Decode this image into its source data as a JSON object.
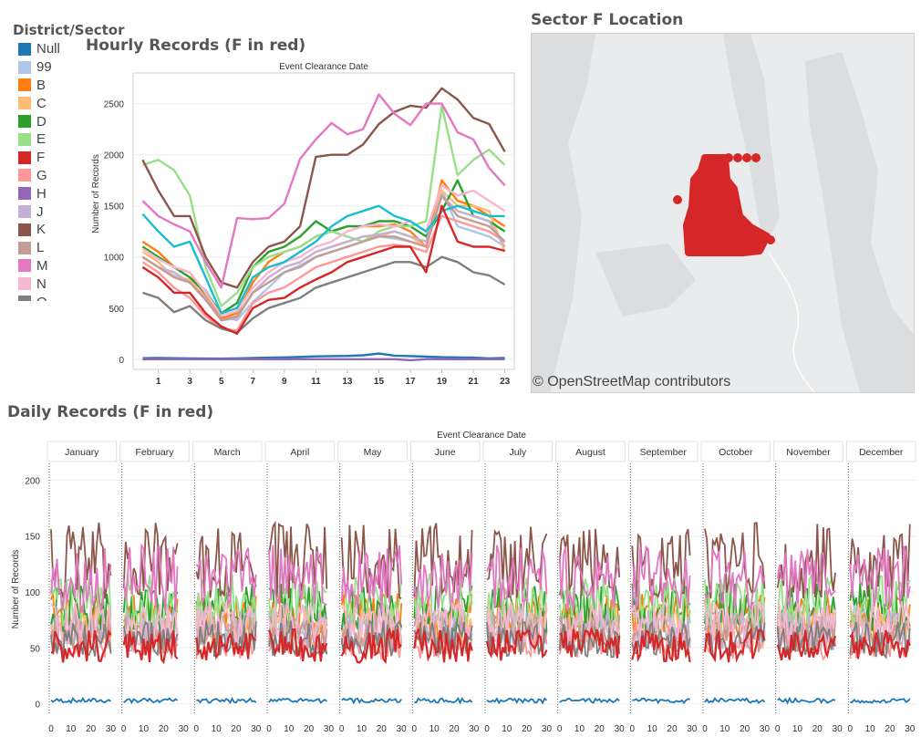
{
  "legend": {
    "title": "District/Sector",
    "items": [
      {
        "label": "Null",
        "color": "#1f77b4"
      },
      {
        "label": "99",
        "color": "#aec7e8"
      },
      {
        "label": "B",
        "color": "#ff7f0e"
      },
      {
        "label": "C",
        "color": "#ffbb78"
      },
      {
        "label": "D",
        "color": "#2ca02c"
      },
      {
        "label": "E",
        "color": "#98df8a"
      },
      {
        "label": "F",
        "color": "#d62728"
      },
      {
        "label": "G",
        "color": "#ff9896"
      },
      {
        "label": "H",
        "color": "#9467bd"
      },
      {
        "label": "J",
        "color": "#c5b0d5"
      },
      {
        "label": "K",
        "color": "#8c564b"
      },
      {
        "label": "L",
        "color": "#c49c94"
      },
      {
        "label": "M",
        "color": "#e377c2"
      },
      {
        "label": "N",
        "color": "#f7b6d2"
      },
      {
        "label": "O",
        "color": "#7f7f7f"
      }
    ]
  },
  "map": {
    "title": "Sector F Location",
    "credit": "© OpenStreetMap contributors",
    "highlight_color": "#d62728"
  },
  "chart_data": [
    {
      "type": "line",
      "title": "Hourly Records (F in red)",
      "top_label": "Event Clearance Date",
      "ylabel": "Number of Records",
      "ylim": [
        -100,
        2800
      ],
      "yticks": [
        0,
        500,
        1000,
        1500,
        2000,
        2500
      ],
      "xticks": [
        1,
        3,
        5,
        7,
        9,
        11,
        13,
        15,
        17,
        19,
        21,
        23
      ],
      "x": [
        0,
        1,
        2,
        3,
        4,
        5,
        6,
        7,
        8,
        9,
        10,
        11,
        12,
        13,
        14,
        15,
        16,
        17,
        18,
        19,
        20,
        21,
        22,
        23
      ],
      "series": [
        {
          "name": "Null",
          "color": "#1f77b4",
          "values": [
            10,
            12,
            10,
            8,
            6,
            5,
            8,
            12,
            15,
            18,
            22,
            28,
            30,
            32,
            38,
            55,
            35,
            30,
            25,
            20,
            18,
            15,
            8,
            12
          ]
        },
        {
          "name": "99",
          "color": "#aec7e8",
          "values": [
            1000,
            900,
            820,
            760,
            680,
            420,
            380,
            560,
            700,
            850,
            920,
            1000,
            1050,
            1100,
            1150,
            1200,
            1180,
            1150,
            1100,
            1650,
            1300,
            1250,
            1200,
            1100
          ]
        },
        {
          "name": "B",
          "color": "#ff7f0e",
          "values": [
            1150,
            1050,
            900,
            850,
            620,
            400,
            450,
            750,
            950,
            1050,
            1100,
            1200,
            1250,
            1300,
            1300,
            1300,
            1320,
            1250,
            1100,
            1750,
            1550,
            1500,
            1400,
            1300
          ]
        },
        {
          "name": "C",
          "color": "#ffbb78",
          "values": [
            1050,
            950,
            800,
            780,
            600,
            380,
            420,
            650,
            800,
            900,
            950,
            1050,
            1100,
            1150,
            1200,
            1200,
            1250,
            1200,
            1100,
            1650,
            1500,
            1500,
            1450,
            1050
          ]
        },
        {
          "name": "D",
          "color": "#2ca02c",
          "values": [
            1100,
            1000,
            900,
            800,
            650,
            450,
            550,
            900,
            1050,
            1100,
            1200,
            1350,
            1250,
            1300,
            1300,
            1350,
            1350,
            1300,
            1200,
            1450,
            1750,
            1400,
            1350,
            1250
          ]
        },
        {
          "name": "E",
          "color": "#98df8a",
          "values": [
            1900,
            1950,
            1850,
            1600,
            900,
            520,
            650,
            900,
            1000,
            1050,
            1100,
            1200,
            1250,
            1200,
            1150,
            1250,
            1300,
            1300,
            1350,
            2480,
            1800,
            1950,
            2050,
            1900
          ]
        },
        {
          "name": "F",
          "color": "#d62728",
          "values": [
            900,
            800,
            650,
            650,
            450,
            320,
            250,
            500,
            580,
            600,
            700,
            780,
            850,
            950,
            1000,
            1050,
            1100,
            1100,
            850,
            1500,
            1150,
            1100,
            1100,
            1060
          ]
        },
        {
          "name": "G",
          "color": "#ff9896",
          "values": [
            950,
            850,
            700,
            600,
            420,
            300,
            280,
            550,
            650,
            700,
            800,
            900,
            950,
            1000,
            1050,
            1100,
            1120,
            1100,
            1050,
            1400,
            1350,
            1300,
            1250,
            1150
          ]
        },
        {
          "name": "H",
          "color": "#9467bd",
          "values": [
            0,
            0,
            0,
            0,
            0,
            0,
            0,
            0,
            0,
            0,
            0,
            0,
            0,
            0,
            0,
            0,
            0,
            -10,
            0,
            0,
            0,
            0,
            0,
            0
          ]
        },
        {
          "name": "J",
          "color": "#c5b0d5",
          "values": [
            1000,
            900,
            850,
            750,
            600,
            380,
            400,
            650,
            800,
            900,
            950,
            1050,
            1100,
            1150,
            1200,
            1220,
            1250,
            1200,
            1150,
            1600,
            1450,
            1400,
            1350,
            1100
          ]
        },
        {
          "name": "K",
          "color": "#8c564b",
          "values": [
            1950,
            1650,
            1400,
            1400,
            1000,
            750,
            700,
            950,
            1100,
            1150,
            1300,
            1980,
            2000,
            2000,
            2100,
            2300,
            2420,
            2480,
            2460,
            2650,
            2540,
            2360,
            2300,
            2030
          ]
        },
        {
          "name": "L",
          "color": "#c49c94",
          "values": [
            1000,
            900,
            800,
            750,
            580,
            380,
            420,
            650,
            750,
            850,
            900,
            1000,
            1050,
            1100,
            1150,
            1200,
            1200,
            1150,
            1100,
            1600,
            1400,
            1350,
            1300,
            1150
          ]
        },
        {
          "name": "M",
          "color": "#e377c2",
          "values": [
            1550,
            1400,
            1320,
            1250,
            950,
            700,
            1380,
            1370,
            1380,
            1520,
            1960,
            2150,
            2310,
            2200,
            2250,
            2590,
            2400,
            2290,
            2500,
            2500,
            2220,
            2150,
            1870,
            1700
          ]
        },
        {
          "name": "N",
          "color": "#f7b6d2",
          "values": [
            1080,
            980,
            900,
            850,
            650,
            430,
            470,
            700,
            850,
            950,
            1000,
            1100,
            1150,
            1250,
            1300,
            1320,
            1300,
            1350,
            1250,
            1700,
            1600,
            1650,
            1550,
            1450
          ]
        },
        {
          "name": "O",
          "color": "#7f7f7f",
          "values": [
            650,
            600,
            460,
            520,
            380,
            300,
            260,
            400,
            500,
            550,
            600,
            700,
            750,
            800,
            850,
            900,
            950,
            950,
            900,
            1000,
            950,
            850,
            820,
            730
          ]
        },
        {
          "name": "",
          "color": "#17becf",
          "values": [
            1420,
            1250,
            1100,
            1150,
            800,
            450,
            500,
            800,
            900,
            950,
            1050,
            1150,
            1300,
            1400,
            1450,
            1500,
            1400,
            1350,
            1250,
            1450,
            1500,
            1450,
            1400,
            1400
          ]
        }
      ]
    },
    {
      "type": "line",
      "title": "Daily Records (F in red)",
      "top_label": "Event Clearance Date",
      "ylabel": "Number of Records",
      "ylim": [
        -10,
        215
      ],
      "yticks": [
        0,
        50,
        100,
        150,
        200
      ],
      "xticks": [
        0,
        10,
        20,
        30
      ],
      "months": [
        "January",
        "February",
        "March",
        "April",
        "May",
        "June",
        "July",
        "August",
        "September",
        "October",
        "November",
        "December"
      ],
      "month_days": [
        31,
        28,
        31,
        30,
        31,
        30,
        31,
        31,
        30,
        31,
        30,
        31
      ],
      "series_levels": [
        {
          "name": "Null",
          "color": "#1f77b4",
          "level": 2
        },
        {
          "name": "99",
          "color": "#aec7e8",
          "level": 70
        },
        {
          "name": "B",
          "color": "#ff7f0e",
          "level": 78
        },
        {
          "name": "C",
          "color": "#ffbb78",
          "level": 70
        },
        {
          "name": "D",
          "color": "#2ca02c",
          "level": 85
        },
        {
          "name": "E",
          "color": "#98df8a",
          "level": 92
        },
        {
          "name": "F",
          "color": "#d62728",
          "level": 52
        },
        {
          "name": "G",
          "color": "#ff9896",
          "level": 56
        },
        {
          "name": "J",
          "color": "#c5b0d5",
          "level": 66
        },
        {
          "name": "K",
          "color": "#8c564b",
          "level": 128
        },
        {
          "name": "L",
          "color": "#c49c94",
          "level": 62
        },
        {
          "name": "M",
          "color": "#e377c2",
          "level": 112
        },
        {
          "name": "N",
          "color": "#f7b6d2",
          "level": 72
        },
        {
          "name": "O",
          "color": "#7f7f7f",
          "level": 58
        }
      ]
    }
  ]
}
